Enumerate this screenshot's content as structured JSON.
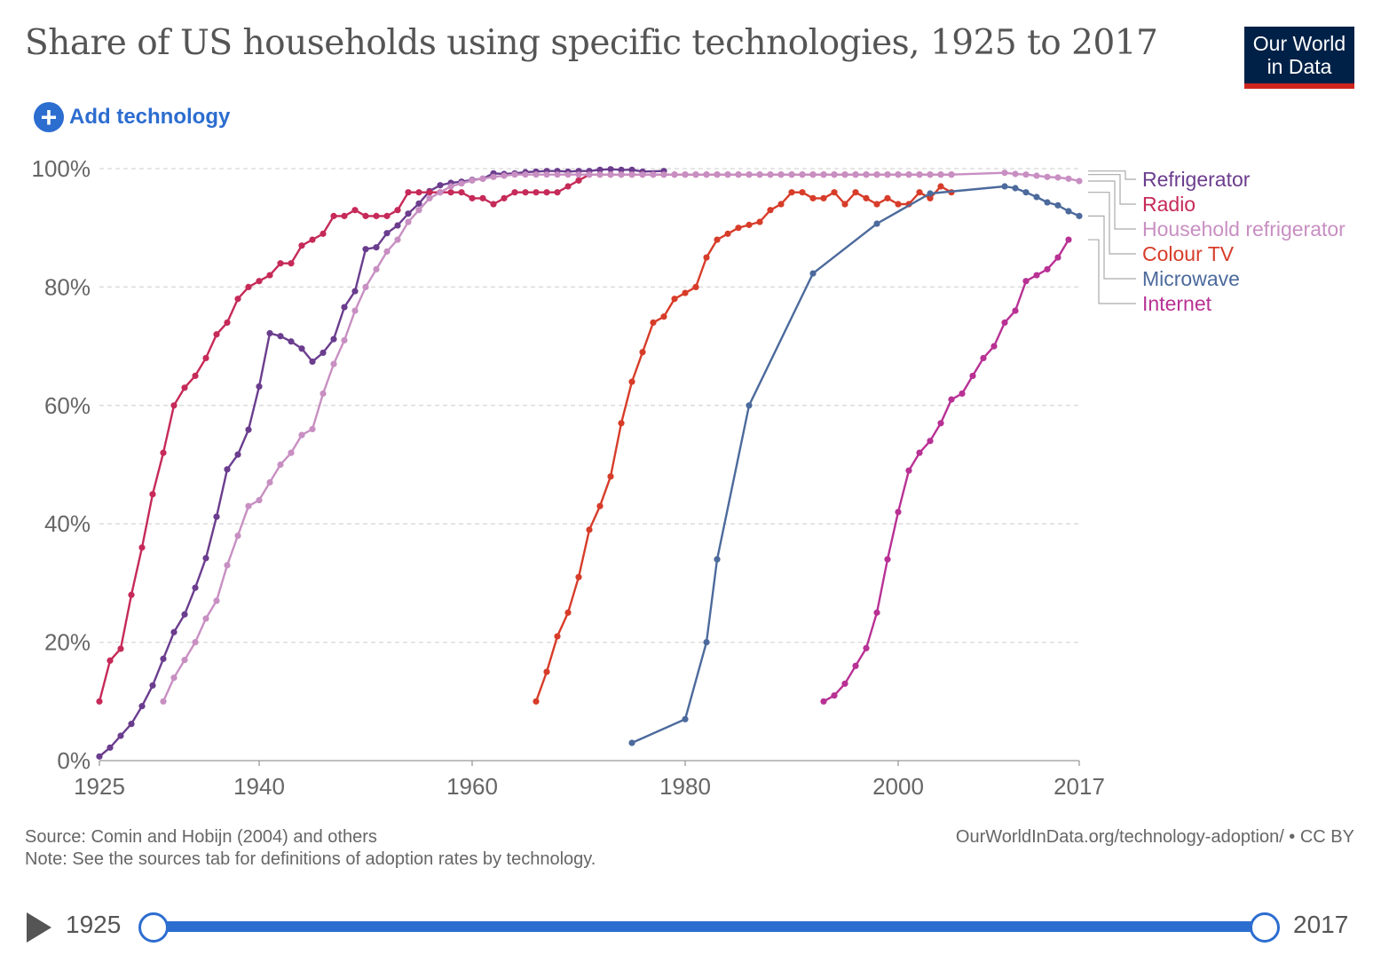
{
  "header": {
    "title": "Share of US households using specific technologies, 1925 to 2017",
    "logo_line1": "Our World",
    "logo_line2": "in Data",
    "add_button_label": "Add technology"
  },
  "footer": {
    "source": "Source: Comin and Hobijn (2004) and others",
    "note": "Note: See the sources tab for definitions of adoption rates by technology.",
    "url": "OurWorldInData.org/technology-adoption/ • CC BY"
  },
  "timeline": {
    "start_label": "1925",
    "end_label": "2017",
    "range": [
      1925,
      2017
    ]
  },
  "colors": {
    "accent": "#2c6dd0",
    "logo_bg": "#002147",
    "logo_bar": "#ce261e"
  },
  "chart_data": {
    "type": "line",
    "title": "Share of US households using specific technologies, 1925 to 2017",
    "xlim": [
      1925,
      2017
    ],
    "ylim": [
      0,
      100
    ],
    "x_ticks": [
      1925,
      1940,
      1960,
      1980,
      2000,
      2017
    ],
    "y_ticks": [
      0,
      20,
      40,
      60,
      80,
      100
    ],
    "y_tick_suffix": "%",
    "grid": "horizontal dashed",
    "legend": "right",
    "series": [
      {
        "name": "Refrigerator",
        "color": "#6b3d8e",
        "points": [
          [
            1925,
            0.7
          ],
          [
            1926,
            2.2
          ],
          [
            1927,
            4.2
          ],
          [
            1928,
            6.2
          ],
          [
            1929,
            9.2
          ],
          [
            1930,
            12.7
          ],
          [
            1931,
            17.2
          ],
          [
            1932,
            21.7
          ],
          [
            1933,
            24.7
          ],
          [
            1934,
            29.2
          ],
          [
            1935,
            34.2
          ],
          [
            1936,
            41.2
          ],
          [
            1937,
            49.2
          ],
          [
            1938,
            51.7
          ],
          [
            1939,
            55.9
          ],
          [
            1940,
            63.2
          ],
          [
            1941,
            72.2
          ],
          [
            1942,
            71.7
          ],
          [
            1943,
            70.8
          ],
          [
            1944,
            69.6
          ],
          [
            1945,
            67.4
          ],
          [
            1946,
            68.9
          ],
          [
            1947,
            71.2
          ],
          [
            1948,
            76.6
          ],
          [
            1949,
            79.3
          ],
          [
            1950,
            86.4
          ],
          [
            1951,
            86.7
          ],
          [
            1952,
            89.1
          ],
          [
            1953,
            90.4
          ],
          [
            1954,
            92.4
          ],
          [
            1955,
            94.1
          ],
          [
            1956,
            96.2
          ],
          [
            1957,
            97.2
          ],
          [
            1958,
            97.6
          ],
          [
            1959,
            97.8
          ],
          [
            1960,
            98.1
          ],
          [
            1961,
            98.3
          ],
          [
            1962,
            99.2
          ],
          [
            1963,
            99.1
          ],
          [
            1964,
            99.2
          ],
          [
            1965,
            99.4
          ],
          [
            1966,
            99.5
          ],
          [
            1967,
            99.6
          ],
          [
            1968,
            99.6
          ],
          [
            1969,
            99.5
          ],
          [
            1970,
            99.6
          ],
          [
            1971,
            99.6
          ],
          [
            1972,
            99.8
          ],
          [
            1973,
            99.9
          ],
          [
            1974,
            99.8
          ],
          [
            1975,
            99.8
          ],
          [
            1976,
            99.5
          ],
          [
            1978,
            99.6
          ]
        ]
      },
      {
        "name": "Radio",
        "color": "#c62a58",
        "points": [
          [
            1925,
            10
          ],
          [
            1926,
            16.9
          ],
          [
            1927,
            18.9
          ],
          [
            1928,
            28
          ],
          [
            1929,
            36
          ],
          [
            1930,
            45
          ],
          [
            1931,
            52
          ],
          [
            1932,
            60
          ],
          [
            1933,
            63
          ],
          [
            1934,
            65
          ],
          [
            1935,
            68
          ],
          [
            1936,
            72
          ],
          [
            1937,
            74
          ],
          [
            1938,
            78
          ],
          [
            1939,
            80
          ],
          [
            1940,
            81
          ],
          [
            1941,
            82
          ],
          [
            1942,
            84
          ],
          [
            1943,
            84
          ],
          [
            1944,
            87
          ],
          [
            1945,
            88
          ],
          [
            1946,
            89
          ],
          [
            1947,
            92
          ],
          [
            1948,
            92
          ],
          [
            1949,
            93
          ],
          [
            1950,
            92
          ],
          [
            1951,
            92
          ],
          [
            1952,
            92
          ],
          [
            1953,
            93
          ],
          [
            1954,
            96
          ],
          [
            1955,
            96
          ],
          [
            1956,
            96
          ],
          [
            1957,
            96
          ],
          [
            1958,
            96
          ],
          [
            1959,
            96
          ],
          [
            1960,
            95
          ],
          [
            1961,
            95
          ],
          [
            1962,
            94
          ],
          [
            1963,
            95
          ],
          [
            1964,
            96
          ],
          [
            1965,
            96
          ],
          [
            1966,
            96
          ],
          [
            1967,
            96
          ],
          [
            1968,
            96
          ],
          [
            1969,
            97
          ],
          [
            1970,
            98
          ],
          [
            1971,
            99
          ],
          [
            1972,
            99
          ],
          [
            1973,
            99
          ],
          [
            1974,
            99
          ],
          [
            1975,
            99
          ],
          [
            1976,
            99
          ],
          [
            1977,
            99
          ],
          [
            1978,
            99
          ],
          [
            1979,
            99
          ],
          [
            1980,
            99
          ],
          [
            1981,
            99
          ],
          [
            1982,
            99
          ],
          [
            1983,
            99
          ],
          [
            1984,
            99
          ],
          [
            1985,
            99
          ],
          [
            1986,
            99
          ],
          [
            1987,
            99
          ],
          [
            1988,
            99
          ],
          [
            1989,
            99
          ],
          [
            1990,
            99
          ],
          [
            1991,
            99
          ],
          [
            1992,
            99
          ],
          [
            1993,
            99
          ],
          [
            1994,
            99
          ],
          [
            1995,
            99
          ],
          [
            1996,
            99
          ],
          [
            1997,
            99
          ],
          [
            1998,
            99
          ],
          [
            1999,
            99
          ],
          [
            2000,
            99
          ],
          [
            2001,
            99
          ],
          [
            2002,
            99
          ],
          [
            2003,
            99
          ],
          [
            2004,
            99
          ],
          [
            2005,
            99
          ]
        ]
      },
      {
        "name": "Household refrigerator",
        "color": "#c88fc2",
        "points": [
          [
            1931,
            10
          ],
          [
            1932,
            14
          ],
          [
            1933,
            17
          ],
          [
            1934,
            20
          ],
          [
            1935,
            24
          ],
          [
            1936,
            27
          ],
          [
            1937,
            33
          ],
          [
            1938,
            38
          ],
          [
            1939,
            43
          ],
          [
            1940,
            44
          ],
          [
            1941,
            47
          ],
          [
            1942,
            50
          ],
          [
            1943,
            52
          ],
          [
            1944,
            55
          ],
          [
            1945,
            56
          ],
          [
            1946,
            62
          ],
          [
            1947,
            67
          ],
          [
            1948,
            71
          ],
          [
            1949,
            76
          ],
          [
            1950,
            80
          ],
          [
            1951,
            83
          ],
          [
            1952,
            86
          ],
          [
            1953,
            88
          ],
          [
            1954,
            91
          ],
          [
            1955,
            93
          ],
          [
            1956,
            95
          ],
          [
            1957,
            96
          ],
          [
            1958,
            97
          ],
          [
            1959,
            97.5
          ],
          [
            1960,
            98
          ],
          [
            1961,
            98.3
          ],
          [
            1962,
            98.6
          ],
          [
            1963,
            98.8
          ],
          [
            1964,
            99
          ],
          [
            1965,
            99
          ],
          [
            1966,
            99
          ],
          [
            1967,
            99
          ],
          [
            1968,
            99
          ],
          [
            1969,
            99
          ],
          [
            1970,
            99
          ],
          [
            1971,
            99
          ],
          [
            1972,
            99
          ],
          [
            1973,
            99
          ],
          [
            1974,
            99
          ],
          [
            1975,
            99
          ],
          [
            1976,
            99
          ],
          [
            1977,
            99
          ],
          [
            1978,
            99
          ],
          [
            1979,
            99
          ],
          [
            1980,
            99
          ],
          [
            1981,
            99
          ],
          [
            1982,
            99
          ],
          [
            1983,
            99
          ],
          [
            1984,
            99
          ],
          [
            1985,
            99
          ],
          [
            1986,
            99
          ],
          [
            1987,
            99
          ],
          [
            1988,
            99
          ],
          [
            1989,
            99
          ],
          [
            1990,
            99
          ],
          [
            1991,
            99
          ],
          [
            1992,
            99
          ],
          [
            1993,
            99
          ],
          [
            1994,
            99
          ],
          [
            1995,
            99
          ],
          [
            1996,
            99
          ],
          [
            1997,
            99
          ],
          [
            1998,
            99
          ],
          [
            1999,
            99
          ],
          [
            2000,
            99
          ],
          [
            2001,
            99
          ],
          [
            2002,
            99
          ],
          [
            2003,
            99
          ],
          [
            2004,
            99
          ],
          [
            2005,
            99
          ],
          [
            2010,
            99.3
          ],
          [
            2011,
            99.1
          ],
          [
            2012,
            99
          ],
          [
            2013,
            98.8
          ],
          [
            2014,
            98.6
          ],
          [
            2015,
            98.5
          ],
          [
            2016,
            98.3
          ],
          [
            2017,
            97.9
          ]
        ]
      },
      {
        "name": "Colour TV",
        "color": "#d73c29",
        "points": [
          [
            1966,
            10
          ],
          [
            1967,
            15
          ],
          [
            1968,
            21
          ],
          [
            1969,
            25
          ],
          [
            1970,
            31
          ],
          [
            1971,
            39
          ],
          [
            1972,
            43
          ],
          [
            1973,
            48
          ],
          [
            1974,
            57
          ],
          [
            1975,
            64
          ],
          [
            1976,
            69
          ],
          [
            1977,
            74
          ],
          [
            1978,
            75
          ],
          [
            1979,
            78
          ],
          [
            1980,
            79
          ],
          [
            1981,
            80
          ],
          [
            1982,
            85
          ],
          [
            1983,
            88
          ],
          [
            1984,
            89
          ],
          [
            1985,
            90
          ],
          [
            1986,
            90.5
          ],
          [
            1987,
            91
          ],
          [
            1988,
            93
          ],
          [
            1989,
            94
          ],
          [
            1990,
            96
          ],
          [
            1991,
            96
          ],
          [
            1992,
            95
          ],
          [
            1993,
            95
          ],
          [
            1994,
            96
          ],
          [
            1995,
            94
          ],
          [
            1996,
            96
          ],
          [
            1997,
            95
          ],
          [
            1998,
            94
          ],
          [
            1999,
            95
          ],
          [
            2000,
            94
          ],
          [
            2001,
            94
          ],
          [
            2002,
            96
          ],
          [
            2003,
            95
          ],
          [
            2004,
            97
          ],
          [
            2005,
            96
          ]
        ]
      },
      {
        "name": "Microwave",
        "color": "#4c6a9c",
        "points": [
          [
            1975,
            3
          ],
          [
            1980,
            7
          ],
          [
            1982,
            20
          ],
          [
            1983,
            34
          ],
          [
            1986,
            60
          ],
          [
            1992,
            82.3
          ],
          [
            1998,
            90.7
          ],
          [
            2003,
            95.8
          ],
          [
            2010,
            97
          ],
          [
            2011,
            96.7
          ],
          [
            2012,
            96
          ],
          [
            2013,
            95.2
          ],
          [
            2014,
            94.3
          ],
          [
            2015,
            93.8
          ],
          [
            2016,
            92.8
          ],
          [
            2017,
            92
          ]
        ]
      },
      {
        "name": "Internet",
        "color": "#b83194",
        "points": [
          [
            1993,
            10
          ],
          [
            1994,
            11
          ],
          [
            1995,
            13
          ],
          [
            1996,
            16
          ],
          [
            1997,
            19
          ],
          [
            1998,
            25
          ],
          [
            1999,
            34
          ],
          [
            2000,
            42
          ],
          [
            2001,
            49
          ],
          [
            2002,
            52
          ],
          [
            2003,
            54
          ],
          [
            2004,
            57
          ],
          [
            2005,
            61
          ],
          [
            2006,
            62
          ],
          [
            2007,
            65
          ],
          [
            2008,
            68
          ],
          [
            2009,
            70
          ],
          [
            2010,
            74
          ],
          [
            2011,
            76
          ],
          [
            2012,
            81
          ],
          [
            2013,
            82
          ],
          [
            2014,
            83
          ],
          [
            2015,
            85
          ],
          [
            2016,
            88
          ]
        ]
      }
    ]
  }
}
